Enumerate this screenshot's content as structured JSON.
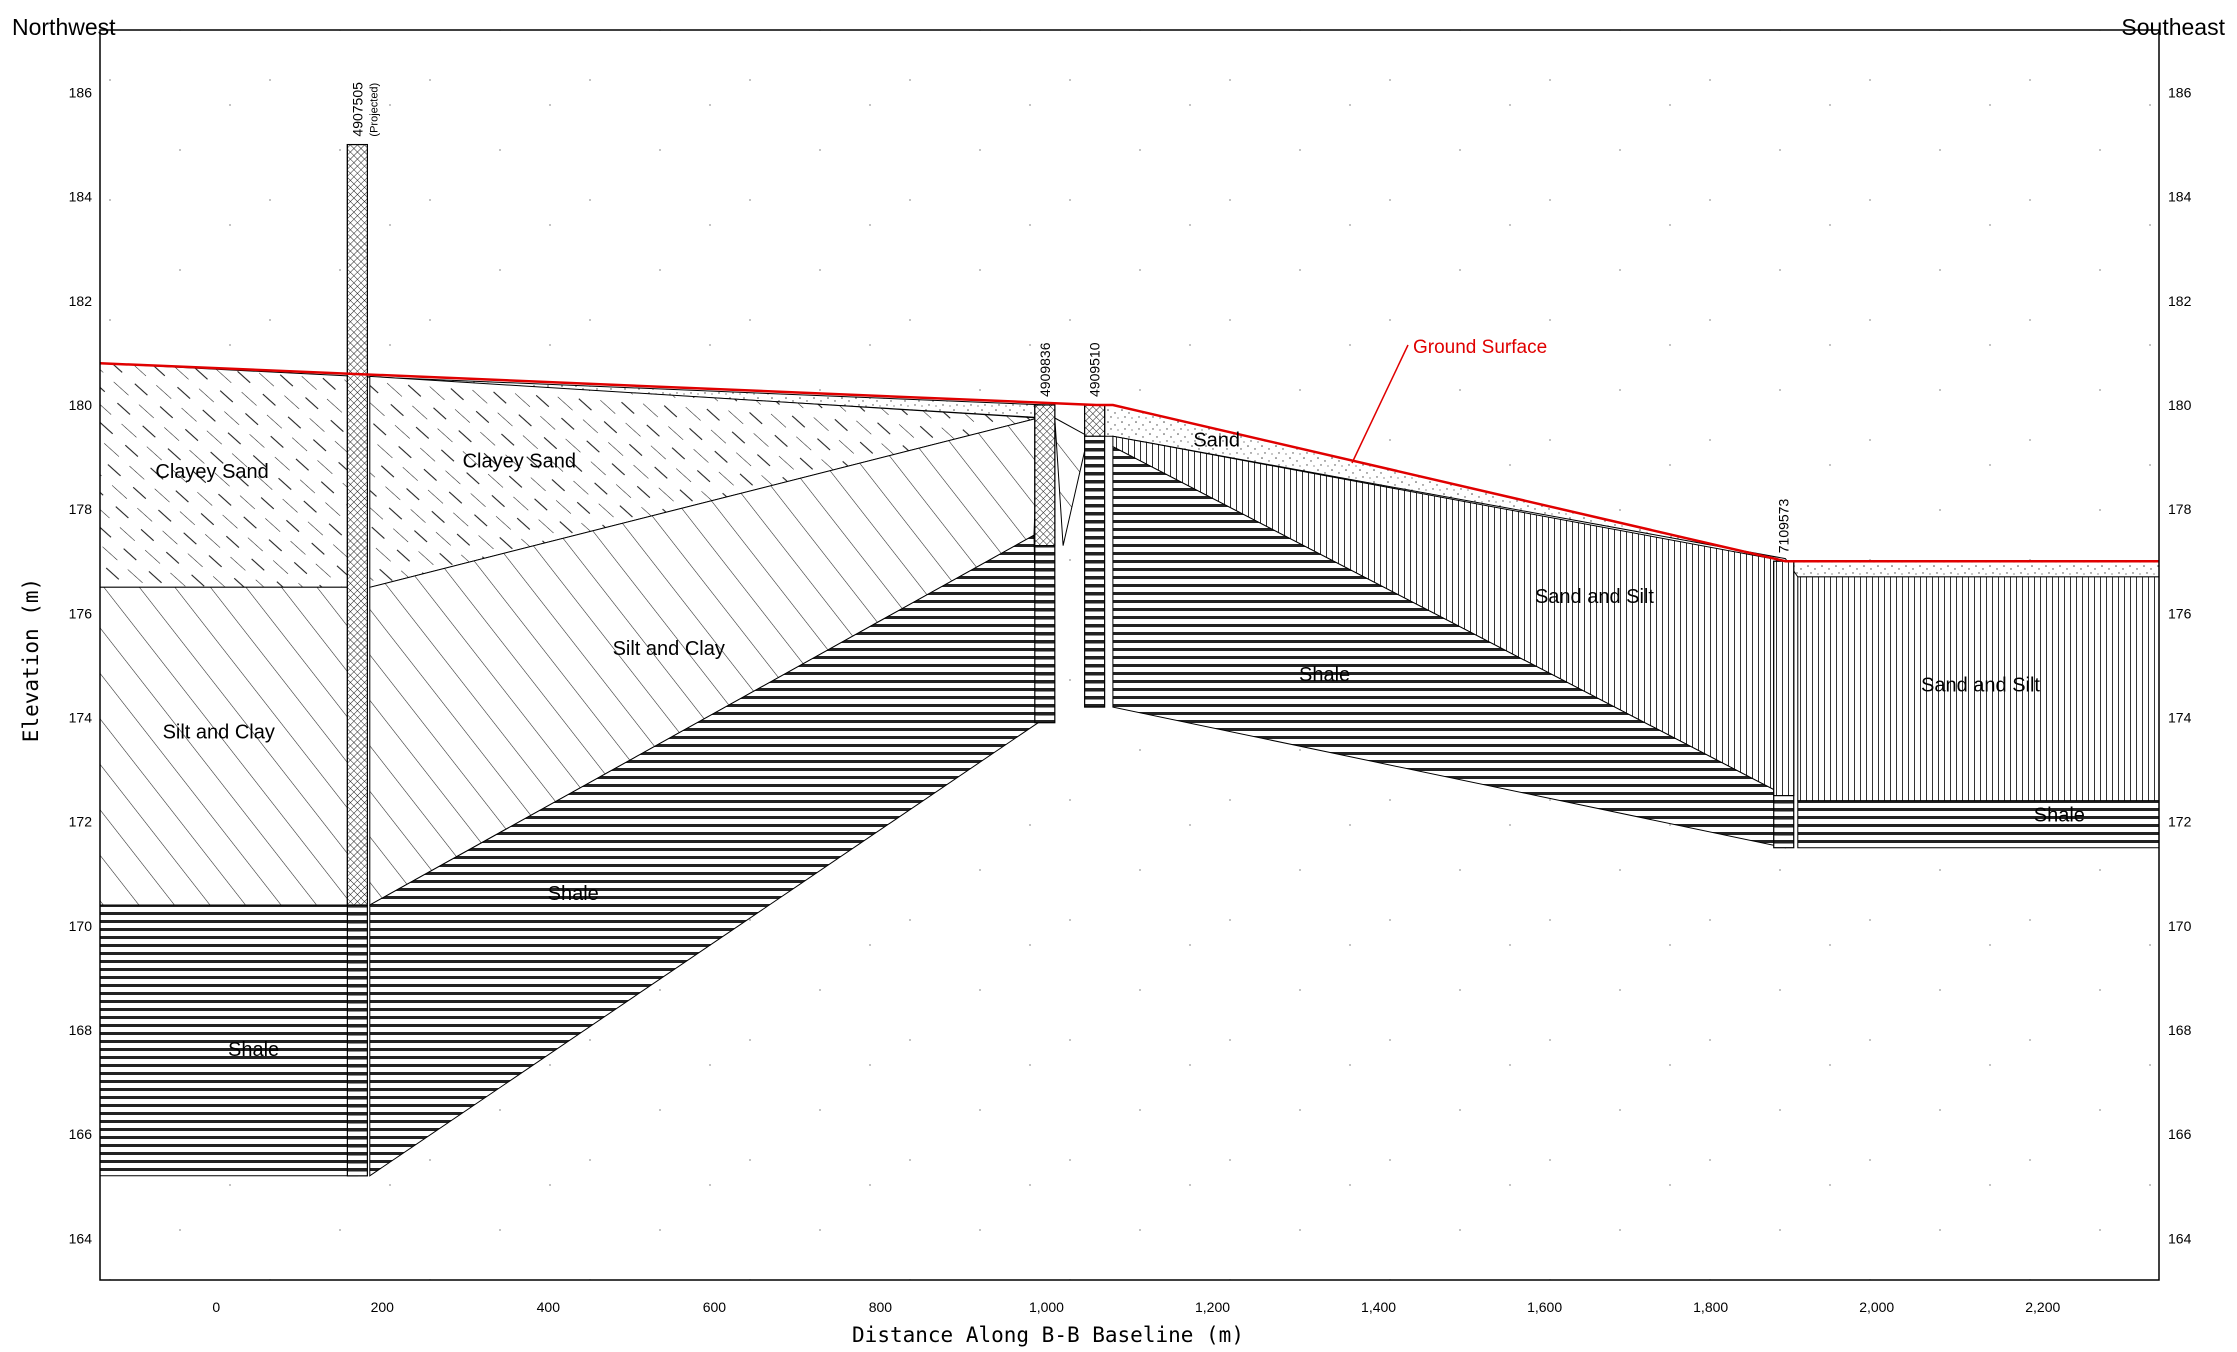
{
  "directions": {
    "left": "Northwest",
    "right": "Southeast"
  },
  "axes": {
    "x_title": "Distance Along B-B Baseline (m)",
    "y_title": "Elevation (m)",
    "x_range": [
      -140,
      2340
    ],
    "y_range": [
      163.2,
      187.2
    ],
    "x_ticks": [
      "0",
      "200",
      "400",
      "600",
      "800",
      "1,000",
      "1,200",
      "1,400",
      "1,600",
      "1,800",
      "2,000",
      "2,200"
    ],
    "y_ticks": [
      "164",
      "166",
      "168",
      "170",
      "172",
      "174",
      "176",
      "178",
      "180",
      "182",
      "184",
      "186"
    ]
  },
  "ground_surface": {
    "label": "Ground Surface",
    "color": "#e00000",
    "profile": [
      [
        -140,
        180.8
      ],
      [
        1060,
        180.0
      ],
      [
        1080,
        180.0
      ],
      [
        1890,
        177.0
      ],
      [
        2340,
        177.0
      ]
    ]
  },
  "units": [
    {
      "name": "Clayey Sand",
      "pattern": "dashed-diagonal",
      "label_at": [
        -5,
        178.6
      ]
    },
    {
      "name": "Clayey Sand",
      "pattern": "dashed-diagonal",
      "label_at": [
        365,
        178.8
      ]
    },
    {
      "name": "Silt and Clay",
      "pattern": "diagonal",
      "label_at": [
        545,
        175.2
      ]
    },
    {
      "name": "Silt and Clay",
      "pattern": "diagonal",
      "label_at": [
        3,
        173.6
      ]
    },
    {
      "name": "Shale",
      "pattern": "horizontal",
      "label_at": [
        430,
        170.5
      ]
    },
    {
      "name": "Shale",
      "pattern": "horizontal",
      "label_at": [
        45,
        167.5
      ]
    },
    {
      "name": "Shale",
      "pattern": "horizontal",
      "label_at": [
        1335,
        174.7
      ]
    },
    {
      "name": "Shale",
      "pattern": "horizontal",
      "label_at": [
        2220,
        172.0
      ]
    },
    {
      "name": "Sand",
      "pattern": "stipple",
      "label_at": [
        1205,
        179.2
      ]
    },
    {
      "name": "Sand and Silt",
      "pattern": "vertical",
      "label_at": [
        1660,
        176.2
      ]
    },
    {
      "name": "Sand and Silt",
      "pattern": "vertical",
      "label_at": [
        2125,
        174.5
      ]
    }
  ],
  "wells": [
    {
      "id": "4907505",
      "note": "(Projected)",
      "x": 170,
      "top": 185.0,
      "bottom": 165.2
    },
    {
      "id": "4909836",
      "x": 998,
      "top": 180.0,
      "bottom": 173.9
    },
    {
      "id": "4909510",
      "x": 1058,
      "top": 180.0,
      "bottom": 174.2
    },
    {
      "id": "7109573",
      "x": 1888,
      "top": 177.0,
      "bottom": 171.5
    }
  ]
}
